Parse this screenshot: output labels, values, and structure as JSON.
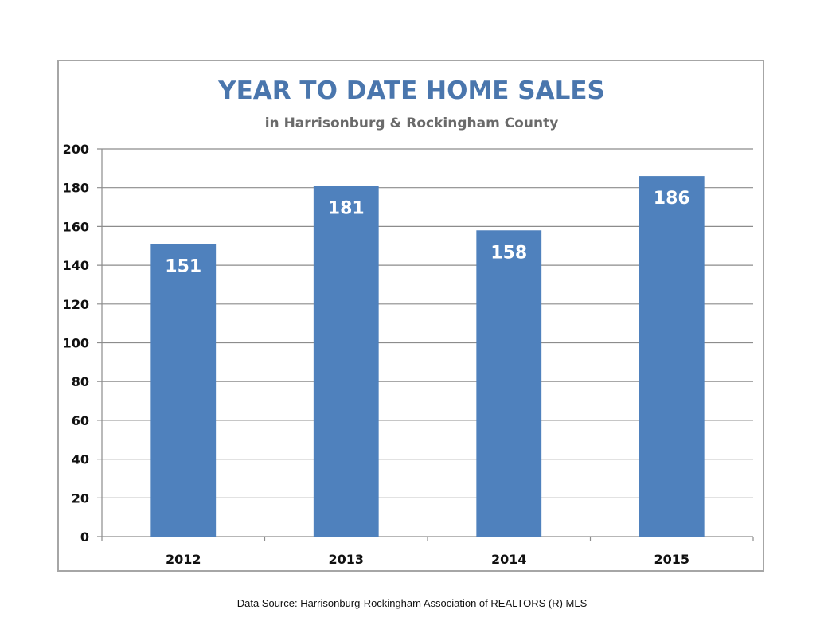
{
  "chart_data": {
    "type": "bar",
    "title": "YEAR TO DATE HOME SALES",
    "subtitle": "in Harrisonburg & Rockingham County",
    "categories": [
      "2012",
      "2013",
      "2014",
      "2015"
    ],
    "values": [
      151,
      181,
      158,
      186
    ],
    "data_labels": [
      "151",
      "181",
      "158",
      "186"
    ],
    "xlabel": "",
    "ylabel": "",
    "ylim": [
      0,
      200
    ],
    "y_ticks": [
      0,
      20,
      40,
      60,
      80,
      100,
      120,
      140,
      160,
      180,
      200
    ],
    "grid": true,
    "legend": "none",
    "bar_color": "#4f81bd",
    "title_color": "#4a76ad"
  },
  "source_note": "Data Source: Harrisonburg-Rockingham Association of REALTORS (R) MLS"
}
